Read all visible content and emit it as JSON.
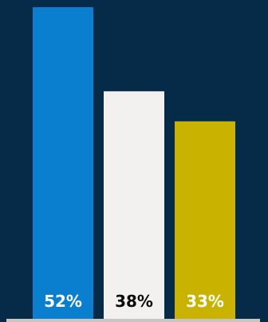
{
  "chart_data": {
    "type": "bar",
    "categories": [
      "",
      "",
      ""
    ],
    "values": [
      52,
      38,
      33
    ],
    "value_labels": [
      "52%",
      "38%",
      "33%"
    ],
    "ylim": [
      0,
      52
    ],
    "grid": false,
    "legend": "none"
  },
  "colors": {
    "background": "#062b49",
    "bars": [
      "#0a7fcf",
      "#f3f1ef",
      "#c9b300"
    ],
    "label_colors": [
      "#ffffff",
      "#0b0b0b",
      "#ffffff"
    ],
    "baseline": "#c8c6c2"
  }
}
